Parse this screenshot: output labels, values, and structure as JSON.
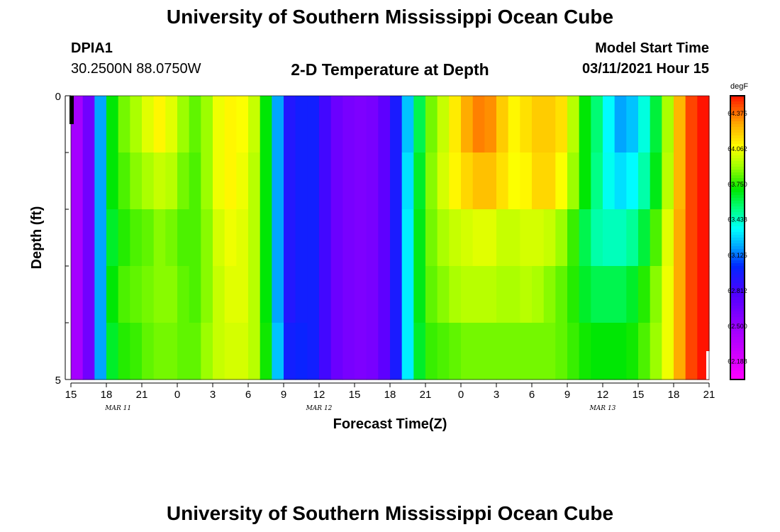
{
  "title_top": "University of Southern Mississippi Ocean Cube",
  "title_bottom": "University of Southern Mississippi Ocean Cube",
  "station": {
    "id": "DPIA1",
    "coords": "30.2500N 88.0750W"
  },
  "model_start": {
    "label": "Model Start Time",
    "value": "03/11/2021 Hour 15"
  },
  "chart_data": {
    "type": "heatmap",
    "title": "2-D Temperature at Depth",
    "xlabel": "Forecast Time(Z)",
    "ylabel": "Depth (ft)",
    "ylim": [
      0,
      5
    ],
    "y_tick_labels": [
      "0",
      "5"
    ],
    "x_tick_labels": [
      "15",
      "18",
      "21",
      "0",
      "3",
      "6",
      "9",
      "12",
      "15",
      "18",
      "21",
      "0",
      "3",
      "6",
      "9",
      "12",
      "15",
      "18",
      "21"
    ],
    "date_labels": [
      {
        "text": "MAR 11",
        "hour_index": 4
      },
      {
        "text": "MAR 12",
        "hour_index": 21
      },
      {
        "text": "MAR 13",
        "hour_index": 45
      }
    ],
    "units": "degF",
    "colorbar_ticks": [
      "64.375",
      "64.062",
      "63.750",
      "63.438",
      "63.125",
      "62.812",
      "62.500",
      "62.188"
    ],
    "vmin": 62.03,
    "vmax": 64.53,
    "depth_levels": 5,
    "hours": 54,
    "anchors_hour": [
      0,
      1,
      2,
      2.5,
      3,
      3.5,
      4,
      4.5,
      5,
      6,
      7,
      8,
      9,
      10,
      11,
      12,
      13,
      14,
      15,
      16,
      17,
      18,
      19,
      20,
      21,
      22,
      23,
      24,
      25,
      26,
      27,
      28,
      29,
      30,
      31,
      32,
      33,
      34,
      35,
      36,
      37,
      38,
      39,
      40,
      41,
      42,
      43,
      44,
      45,
      46,
      47,
      48,
      49,
      50,
      51,
      52,
      53,
      54
    ],
    "anchors_value": [
      [
        62.4,
        62.5,
        62.8,
        63.2,
        63.5,
        63.7,
        63.8,
        63.85,
        63.9,
        63.95,
        64.1,
        64.1,
        63.95,
        63.85,
        63.8,
        64.0,
        64.1,
        64.1,
        64.05,
        63.9,
        63.5,
        62.9,
        62.95,
        63.0,
        62.95,
        62.7,
        62.65,
        62.6,
        62.6,
        62.65,
        62.8,
        63.1,
        63.4,
        63.8,
        63.9,
        64.05,
        64.2,
        64.35,
        64.35,
        64.3,
        64.1,
        64.1,
        64.2,
        64.2,
        64.2,
        64.1,
        63.8,
        63.6,
        63.5,
        63.2,
        63.2,
        63.3,
        63.5,
        63.75,
        64.1,
        64.4,
        64.5
      ],
      [
        62.4,
        62.5,
        62.8,
        63.2,
        63.5,
        63.7,
        63.75,
        63.8,
        63.85,
        63.9,
        63.95,
        64.0,
        63.9,
        63.8,
        63.8,
        64.0,
        64.1,
        64.1,
        64.0,
        63.9,
        63.5,
        62.9,
        62.95,
        63.0,
        62.95,
        62.7,
        62.65,
        62.6,
        62.6,
        62.65,
        62.8,
        63.1,
        63.5,
        63.8,
        63.95,
        64.05,
        64.15,
        64.2,
        64.25,
        64.2,
        64.1,
        64.05,
        64.15,
        64.2,
        64.15,
        64.0,
        63.8,
        63.6,
        63.45,
        63.3,
        63.3,
        63.4,
        63.55,
        63.8,
        64.1,
        64.4,
        64.5
      ],
      [
        62.4,
        62.5,
        62.8,
        63.2,
        63.5,
        63.65,
        63.7,
        63.75,
        63.8,
        63.8,
        63.85,
        63.9,
        63.8,
        63.8,
        63.8,
        63.95,
        64.05,
        64.05,
        64.0,
        63.9,
        63.5,
        62.9,
        62.95,
        63.0,
        62.95,
        62.7,
        62.65,
        62.6,
        62.6,
        62.65,
        62.8,
        63.1,
        63.55,
        63.8,
        63.9,
        63.95,
        64.0,
        64.0,
        64.05,
        64.0,
        63.95,
        64.0,
        64.0,
        64.0,
        63.95,
        63.85,
        63.7,
        63.5,
        63.45,
        63.45,
        63.45,
        63.55,
        63.7,
        63.9,
        64.15,
        64.4,
        64.5
      ],
      [
        62.4,
        62.5,
        62.8,
        63.2,
        63.5,
        63.7,
        63.75,
        63.8,
        63.8,
        63.85,
        63.85,
        63.9,
        63.85,
        63.8,
        63.8,
        63.95,
        64.0,
        64.05,
        64.0,
        63.9,
        63.5,
        62.9,
        62.95,
        63.0,
        62.95,
        62.7,
        62.65,
        62.6,
        62.6,
        62.65,
        62.8,
        63.1,
        63.55,
        63.8,
        63.85,
        63.9,
        63.95,
        63.95,
        63.95,
        63.95,
        63.9,
        63.95,
        63.95,
        63.9,
        63.85,
        63.8,
        63.7,
        63.6,
        63.6,
        63.6,
        63.6,
        63.7,
        63.8,
        63.95,
        64.15,
        64.4,
        64.5
      ],
      [
        62.4,
        62.5,
        62.8,
        63.2,
        63.55,
        63.65,
        63.7,
        63.75,
        63.75,
        63.8,
        63.85,
        63.85,
        63.85,
        63.8,
        63.85,
        63.95,
        64.0,
        64.0,
        64.0,
        63.9,
        63.55,
        62.95,
        63.0,
        63.0,
        62.95,
        62.7,
        62.65,
        62.6,
        62.6,
        62.65,
        62.8,
        63.1,
        63.55,
        63.75,
        63.8,
        63.8,
        63.85,
        63.85,
        63.85,
        63.85,
        63.85,
        63.85,
        63.85,
        63.85,
        63.85,
        63.8,
        63.75,
        63.7,
        63.7,
        63.7,
        63.7,
        63.75,
        63.85,
        63.95,
        64.15,
        64.4,
        64.5
      ]
    ]
  }
}
